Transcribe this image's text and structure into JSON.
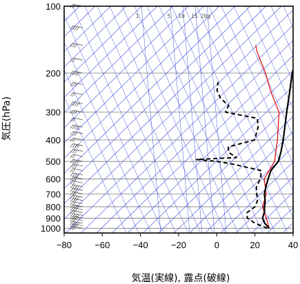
{
  "chart_data": {
    "type": "line",
    "title": "",
    "xlabel": "気温(実線), 露点(破線)",
    "ylabel": "気圧(hPa)",
    "xlim": [
      -80,
      40
    ],
    "ylim": [
      1050,
      100
    ],
    "y_scale": "log",
    "x_ticks": [
      "−80",
      "−60",
      "−40",
      "−20",
      "0",
      "20",
      "40"
    ],
    "y_ticks": [
      "100",
      "200",
      "300",
      "400",
      "500",
      "600",
      "700",
      "800",
      "900",
      "1000"
    ],
    "mixing_ratio_labels": [
      "1",
      "5",
      "10",
      "15",
      "20g"
    ],
    "grid": true,
    "colors": {
      "temperature": "#000000",
      "dewpoint": "#000000",
      "parcel": "#e00000",
      "skewed_lines": "#2b3bd6",
      "grid": "#7a7a7a",
      "wind": "#555555"
    },
    "series": [
      {
        "style": "solid",
        "points": [
          [
            25,
            1000
          ],
          [
            20,
            950
          ],
          [
            16,
            900
          ],
          [
            14,
            850
          ],
          [
            11,
            800
          ],
          [
            8,
            750
          ],
          [
            4,
            700
          ],
          [
            1,
            650
          ],
          [
            -2,
            600
          ],
          [
            -5,
            550
          ],
          [
            -6,
            500
          ],
          [
            -10,
            450
          ],
          [
            -15,
            400
          ],
          [
            -21,
            350
          ],
          [
            -28,
            300
          ],
          [
            -36,
            250
          ],
          [
            -46,
            200
          ],
          [
            -50,
            180
          ],
          [
            -52,
            170
          ],
          [
            -54,
            150
          ],
          [
            -60,
            130
          ],
          [
            -63,
            120
          ],
          [
            -65,
            110
          ],
          [
            -68,
            100
          ]
        ]
      },
      {
        "style": "dashed",
        "points": [
          [
            24,
            1000
          ],
          [
            15,
            950
          ],
          [
            8,
            900
          ],
          [
            5,
            850
          ],
          [
            6,
            800
          ],
          [
            4,
            750
          ],
          [
            0,
            700
          ],
          [
            -4,
            650
          ],
          [
            -6,
            600
          ],
          [
            -10,
            550
          ],
          [
            -28,
            515
          ],
          [
            -38,
            500
          ],
          [
            -50,
            490
          ],
          [
            -30,
            480
          ],
          [
            -37,
            455
          ],
          [
            -40,
            430
          ],
          [
            -30,
            400
          ],
          [
            -35,
            350
          ],
          [
            -40,
            320
          ],
          [
            -60,
            300
          ],
          [
            -62,
            280
          ],
          [
            -70,
            260
          ],
          [
            -76,
            240
          ],
          [
            -80,
            220
          ]
        ]
      },
      {
        "style": "solid",
        "points": [
          [
            25,
            1000
          ],
          [
            18,
            900
          ],
          [
            10,
            800
          ],
          [
            5,
            700
          ],
          [
            -4,
            600
          ],
          [
            -8,
            500
          ],
          [
            -18,
            400
          ],
          [
            -32,
            300
          ],
          [
            -48,
            240
          ],
          [
            -60,
            200
          ],
          [
            -76,
            160
          ],
          [
            -80,
            150
          ]
        ]
      }
    ],
    "wind_levels_hPa": [
      1000,
      975,
      950,
      925,
      900,
      875,
      850,
      825,
      800,
      775,
      750,
      725,
      700,
      675,
      650,
      625,
      600,
      575,
      550,
      525,
      500,
      475,
      450,
      425,
      400,
      375,
      350,
      325,
      300,
      275,
      250,
      225,
      200,
      175,
      150,
      125,
      100
    ]
  }
}
